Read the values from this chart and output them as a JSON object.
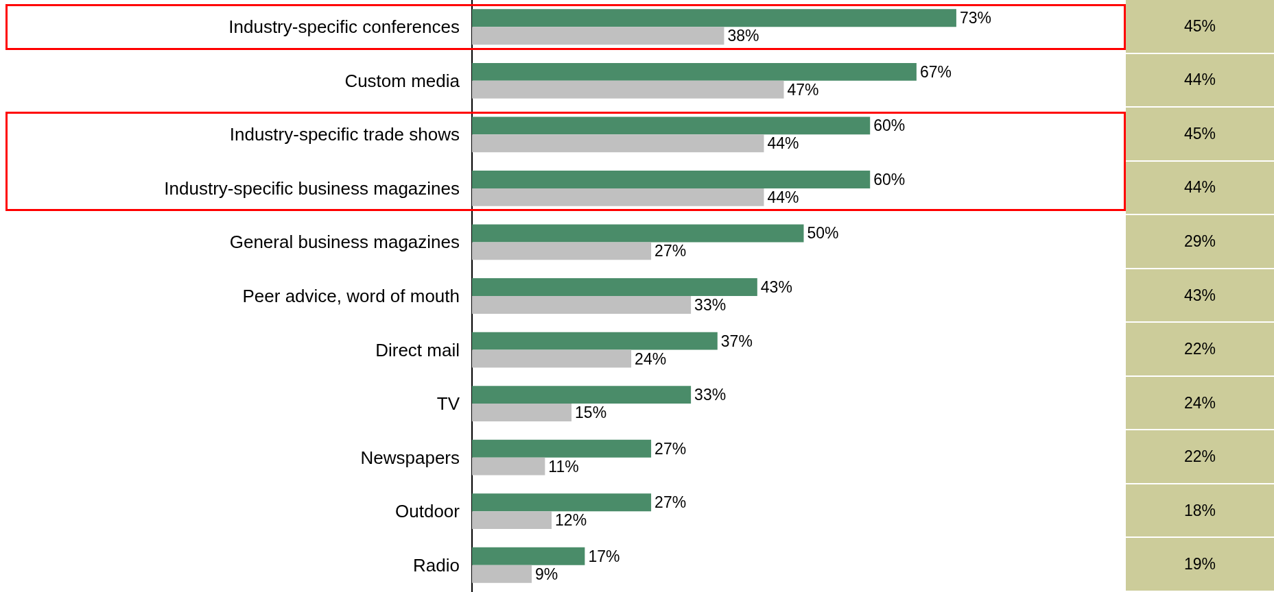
{
  "chart_data": [
    {
      "type": "bar",
      "orientation": "horizontal",
      "categories": [
        "Industry-specific conferences",
        "Custom media",
        "Industry-specific trade shows",
        "Industry-specific business magazines",
        "General business magazines",
        "Peer advice, word of mouth",
        "Direct mail",
        "TV",
        "Newspapers",
        "Outdoor",
        "Radio"
      ],
      "series": [
        {
          "color": "#4a8c69",
          "values": [
            73,
            67,
            60,
            60,
            50,
            43,
            37,
            33,
            27,
            27,
            17
          ],
          "value_labels": [
            "73%",
            "67%",
            "60%",
            "60%",
            "50%",
            "43%",
            "37%",
            "33%",
            "27%",
            "27%",
            "17%"
          ]
        },
        {
          "color": "#c0c0c0",
          "values": [
            38,
            47,
            44,
            44,
            27,
            33,
            24,
            15,
            11,
            12,
            9
          ],
          "value_labels": [
            "38%",
            "47%",
            "44%",
            "44%",
            "27%",
            "33%",
            "24%",
            "15%",
            "11%",
            "12%",
            "9%"
          ]
        }
      ],
      "tick_labels": "y"
    },
    {
      "type": "other",
      "value_labels": [
        "45%",
        "44%",
        "45%",
        "44%",
        "29%",
        "43%",
        "22%",
        "24%",
        "22%",
        "18%",
        "19%"
      ],
      "color": "#cccc9a"
    }
  ]
}
